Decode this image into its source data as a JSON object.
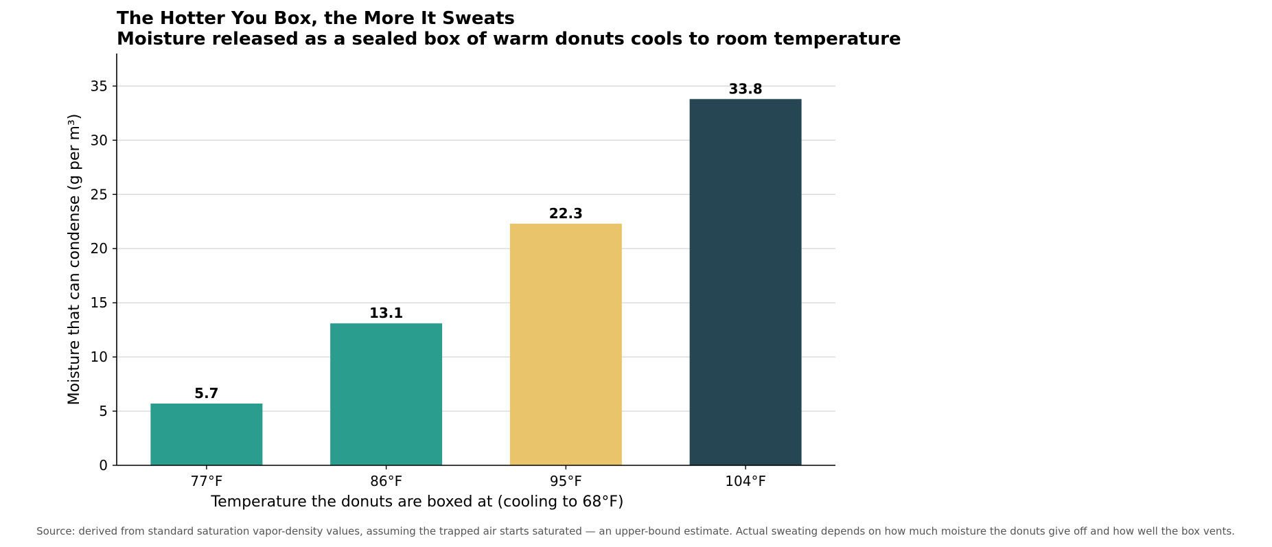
{
  "chart_data": {
    "type": "bar",
    "title": "The Hotter You Box, the More It Sweats",
    "subtitle": "Moisture released as a sealed box of warm donuts cools to room temperature",
    "xlabel": "Temperature the donuts are boxed at (cooling to 68°F)",
    "ylabel": "Moisture that can condense (g per m³)",
    "categories": [
      "77°F",
      "86°F",
      "95°F",
      "104°F"
    ],
    "values": [
      5.7,
      13.1,
      22.3,
      33.8
    ],
    "data_labels": [
      "5.7",
      "13.1",
      "22.3",
      "33.8"
    ],
    "bar_colors": [
      "#2a9d8f",
      "#2a9d8f",
      "#e9c46a",
      "#264653"
    ],
    "ylim": [
      0,
      38
    ],
    "yticks": [
      0,
      5,
      10,
      15,
      20,
      25,
      30,
      35
    ],
    "ytick_labels": [
      "0",
      "5",
      "10",
      "15",
      "20",
      "25",
      "30",
      "35"
    ],
    "grid": "horizontal",
    "source": "Source: derived from standard saturation vapor-density values, assuming the trapped air starts saturated — an upper-bound estimate. Actual sweating depends on how much moisture the donuts give off and how well the box vents."
  }
}
